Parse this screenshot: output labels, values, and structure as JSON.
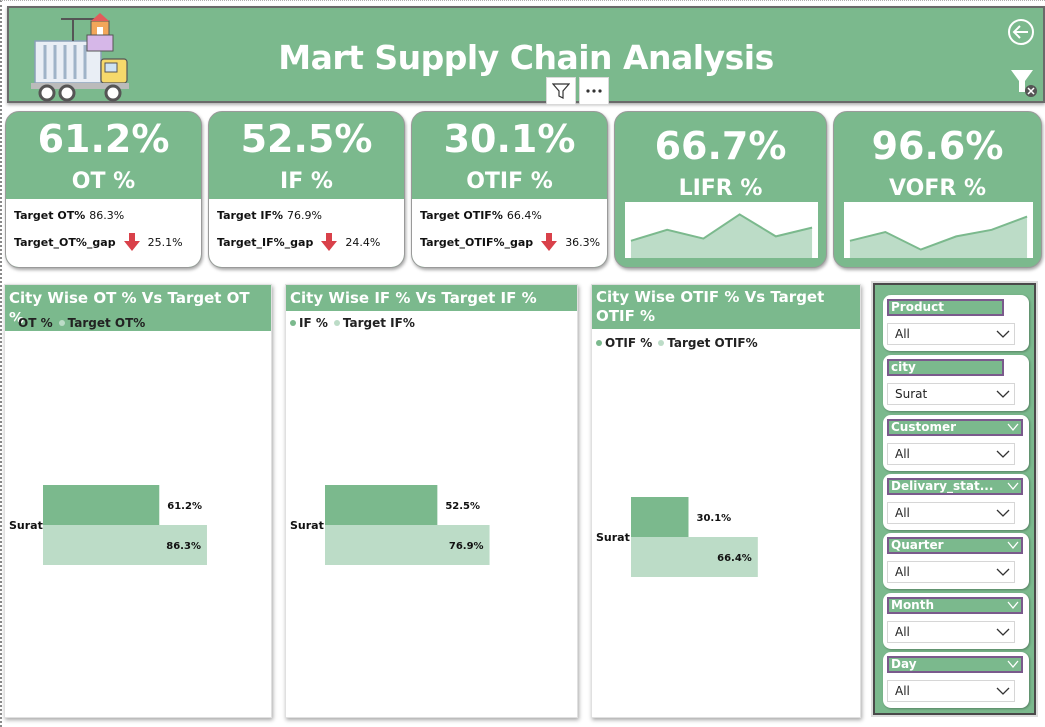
{
  "header": {
    "title": "Mart Supply Chain Analysis"
  },
  "kpis": [
    {
      "value": "61.2%",
      "label": "OT %",
      "target_label": "Target OT%",
      "target_value": "86.3%",
      "gap_label": "Target_OT%_gap",
      "gap_value": "25.1%"
    },
    {
      "value": "52.5%",
      "label": "IF %",
      "target_label": "Target IF%",
      "target_value": "76.9%",
      "gap_label": "Target_IF%_gap",
      "gap_value": "24.4%"
    },
    {
      "value": "30.1%",
      "label": "OTIF %",
      "target_label": "Target OTIF%",
      "target_value": "66.4%",
      "gap_label": "Target_OTIF%_gap",
      "gap_value": "36.3%"
    },
    {
      "value": "66.7%",
      "label": "LIFR %"
    },
    {
      "value": "96.6%",
      "label": "VOFR %"
    }
  ],
  "chart_data": [
    {
      "type": "bar",
      "title": "City Wise OT % Vs Target OT %",
      "categories": [
        "Surat"
      ],
      "series": [
        {
          "name": "OT %",
          "values": [
            61.2
          ],
          "labels": [
            "61.2%"
          ]
        },
        {
          "name": "Target OT%",
          "values": [
            86.3
          ],
          "labels": [
            "86.3%"
          ]
        }
      ]
    },
    {
      "type": "bar",
      "title": "City Wise IF % Vs Target IF %",
      "categories": [
        "Surat"
      ],
      "series": [
        {
          "name": "IF %",
          "values": [
            52.5
          ],
          "labels": [
            "52.5%"
          ]
        },
        {
          "name": "Target IF%",
          "values": [
            76.9
          ],
          "labels": [
            "76.9%"
          ]
        }
      ]
    },
    {
      "type": "bar",
      "title": "City Wise OTIF % Vs Target OTIF %",
      "categories": [
        "Surat"
      ],
      "series": [
        {
          "name": "OTIF %",
          "values": [
            30.1
          ],
          "labels": [
            "30.1%"
          ]
        },
        {
          "name": "Target OTIF%",
          "values": [
            66.4
          ],
          "labels": [
            "66.4%"
          ]
        }
      ]
    }
  ],
  "sparklines": {
    "lifr": [
      0.3,
      0.55,
      0.35,
      0.9,
      0.4,
      0.6
    ],
    "vofr": [
      0.3,
      0.5,
      0.1,
      0.4,
      0.55,
      0.85
    ]
  },
  "slicers": [
    {
      "label": "Product",
      "value": "All"
    },
    {
      "label": "city",
      "value": "Surat"
    },
    {
      "label": "Customer",
      "value": "All"
    },
    {
      "label": "Delivary_stat...",
      "value": "All"
    },
    {
      "label": "Quarter",
      "value": "All"
    },
    {
      "label": "Month",
      "value": "All"
    },
    {
      "label": "Day",
      "value": "All"
    }
  ],
  "colors": {
    "primary": "#7bb98d",
    "secondary": "#bcdcc7",
    "down_arrow": "#d9414a"
  }
}
